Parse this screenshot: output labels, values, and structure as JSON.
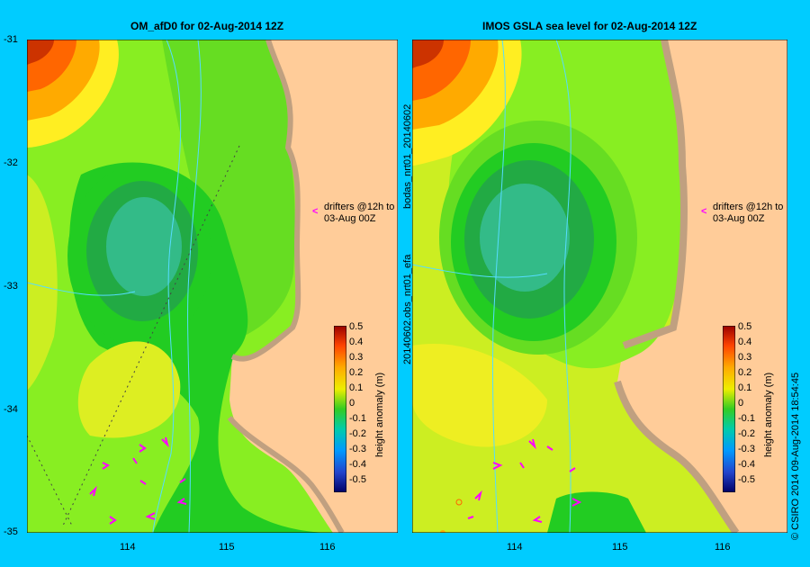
{
  "left_panel": {
    "title": "OM_afD0 for 02-Aug-2014 12Z",
    "annotation": [
      "drifters @12h to",
      "03-Aug 00Z"
    ]
  },
  "right_panel": {
    "title": "IMOS GSLA sea level  for 02-Aug-2014 12Z",
    "annotation": [
      "drifters @12h to",
      "03-Aug 00Z"
    ],
    "side_label_top": "bodas_nrt01_20140602",
    "side_label_bottom": "20140602.obs_nrt01_efa"
  },
  "axes": {
    "y_ticks": [
      "-31",
      "-32",
      "-33",
      "-34",
      "-35"
    ],
    "x_ticks": [
      "114",
      "115",
      "116"
    ]
  },
  "colorbar": {
    "label": "height anomaly (m)",
    "ticks": [
      "0.5",
      "0.4",
      "0.3",
      "0.2",
      "0.1",
      "0",
      "-0.1",
      "-0.2",
      "-0.3",
      "-0.4",
      "-0.5"
    ]
  },
  "footer_text": "© CSIRO 2014   09-Aug-2014 18:54:45",
  "colors": {
    "background": "#00ccff",
    "land": "#ffcc99",
    "coast": "#c0a080",
    "drifter_arrow": "#ff00ff"
  }
}
